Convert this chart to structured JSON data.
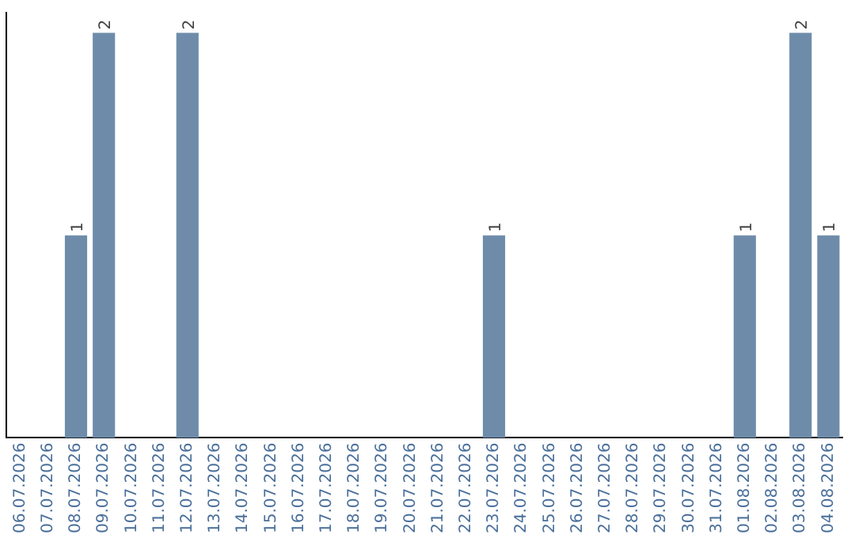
{
  "chart_data": {
    "type": "bar",
    "categories": [
      "06.07.2026",
      "07.07.2026",
      "08.07.2026",
      "09.07.2026",
      "10.07.2026",
      "11.07.2026",
      "12.07.2026",
      "13.07.2026",
      "14.07.2026",
      "15.07.2026",
      "16.07.2026",
      "17.07.2026",
      "18.07.2026",
      "19.07.2026",
      "20.07.2026",
      "21.07.2026",
      "22.07.2026",
      "23.07.2026",
      "24.07.2026",
      "25.07.2026",
      "26.07.2026",
      "27.07.2026",
      "28.07.2026",
      "29.07.2026",
      "30.07.2026",
      "31.07.2026",
      "01.08.2026",
      "02.08.2026",
      "03.08.2026",
      "04.08.2026"
    ],
    "values": [
      0,
      0,
      1,
      2,
      0,
      0,
      2,
      0,
      0,
      0,
      0,
      0,
      0,
      0,
      0,
      0,
      0,
      1,
      0,
      0,
      0,
      0,
      0,
      0,
      0,
      0,
      1,
      0,
      2,
      1
    ],
    "color": "#6e8caa",
    "ylim": [
      0,
      2.1
    ],
    "value_labels": [
      null,
      null,
      "1",
      "2",
      null,
      null,
      "2",
      null,
      null,
      null,
      null,
      null,
      null,
      null,
      null,
      null,
      null,
      "1",
      null,
      null,
      null,
      null,
      null,
      null,
      null,
      null,
      "1",
      null,
      "2",
      "1"
    ],
    "grid": false,
    "legend": false,
    "tick_labels": "x"
  }
}
